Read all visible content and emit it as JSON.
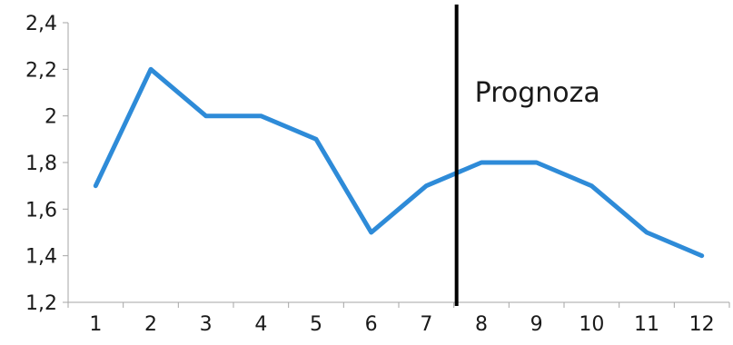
{
  "chart_data": {
    "type": "line",
    "title": "",
    "xlabel": "",
    "ylabel": "",
    "categories": [
      "1",
      "2",
      "3",
      "4",
      "5",
      "6",
      "7",
      "8",
      "9",
      "10",
      "11",
      "12"
    ],
    "series": [
      {
        "values": [
          1.7,
          2.2,
          2.0,
          2.0,
          1.9,
          1.5,
          1.7,
          1.8,
          1.8,
          1.7,
          1.5,
          1.4
        ],
        "color": "#2E8BD8"
      }
    ],
    "y_ticks": [
      "1,2",
      "1,4",
      "1,6",
      "1,8",
      "2",
      "2,2",
      "2,4"
    ],
    "y_tick_values": [
      1.2,
      1.4,
      1.6,
      1.8,
      2.0,
      2.2,
      2.4
    ],
    "ylim": [
      1.2,
      2.4
    ],
    "grid": false,
    "legend": "none",
    "annotation": {
      "text": "Prognoza",
      "divider_between_categories": [
        7,
        8
      ],
      "divider_color": "#000000"
    }
  }
}
